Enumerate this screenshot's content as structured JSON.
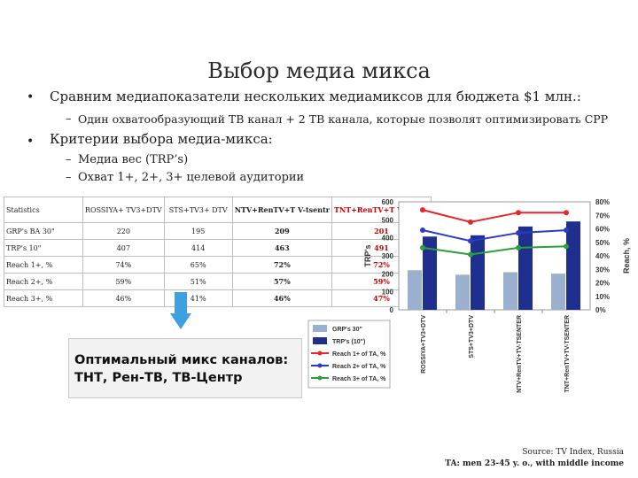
{
  "slide": {
    "title": "Выбор медиа микса",
    "bullet1": "Сравним медиапоказатели нескольких медиамиксов для бюджета $1 млн.:",
    "bullet1_sub": "Один охватообразующий ТВ канал + 2 ТВ канала, которые позволят оптимизировать CPP",
    "bullet2": "Критерии выбора медиа-микса:",
    "bullet2_sub1": "Медиа вес (TRP’s)",
    "bullet2_sub2": "Охват 1+, 2+, 3+ целевой аудитории",
    "bullet_char": "•",
    "dash_char": "–"
  },
  "table": {
    "header": [
      "Statistics",
      "ROSSIYA+ TV3+DTV",
      "STS+TV3+ DTV",
      "NTV+RenTV+T V-tsentr",
      "TNT+RenTV+T V-tsentr"
    ],
    "rows": [
      [
        "GRP's BA 30\"",
        "220",
        "195",
        "209",
        "201"
      ],
      [
        "TRP's 10\"",
        "407",
        "414",
        "463",
        "491"
      ],
      [
        "Reach 1+, %",
        "74%",
        "65%",
        "72%",
        "72%"
      ],
      [
        "Reach 2+, %",
        "59%",
        "51%",
        "57%",
        "59%"
      ],
      [
        "Reach 3+, %",
        "46%",
        "41%",
        "46%",
        "47%"
      ]
    ]
  },
  "conclusion": {
    "line1": "Оптимальный микс каналов:",
    "line2": "ТНТ, Рен-ТВ, ТВ-Центр"
  },
  "source": {
    "line1": "Source: TV Index, Russia",
    "line2": "TA: men 23-45 y. o., with middle income"
  },
  "colors": {
    "grp_bar": "#9bb0cf",
    "trp_bar": "#1f2f8f",
    "reach1": "#e8262b",
    "reach2": "#2b3cc4",
    "reach3": "#2f9e3a",
    "highlight": "#cc0000",
    "arrow": "#3ea0e0"
  },
  "chart_data": {
    "type": "bar",
    "categories": [
      "ROSSIYA+TV3+DTV",
      "STS+TV3+DTV",
      "NTV+RenTV+TV-TSENTER",
      "TNT+RenTV+TV-TSENTER"
    ],
    "series": [
      {
        "name": "GRP's 30\"",
        "kind": "bar",
        "axis": "left",
        "values": [
          220,
          195,
          209,
          201
        ]
      },
      {
        "name": "TRP's (10\")",
        "kind": "bar",
        "axis": "left",
        "values": [
          407,
          414,
          463,
          491
        ]
      },
      {
        "name": "Reach 1+ of TA, %",
        "kind": "line",
        "axis": "right",
        "values": [
          74,
          65,
          72,
          72
        ]
      },
      {
        "name": "Reach 2+ of TA, %",
        "kind": "line",
        "axis": "right",
        "values": [
          59,
          51,
          57,
          59
        ]
      },
      {
        "name": "Reach 3+ of TA, %",
        "kind": "line",
        "axis": "right",
        "values": [
          46,
          41,
          46,
          47
        ]
      }
    ],
    "ylabel": "TRP's",
    "y2label": "Reach, %",
    "ylim": [
      0,
      600
    ],
    "y2lim": [
      0,
      80
    ],
    "yticks": [
      "0",
      "100",
      "200",
      "300",
      "400",
      "500",
      "600"
    ],
    "y2ticks": [
      "0%",
      "10%",
      "20%",
      "30%",
      "40%",
      "50%",
      "60%",
      "70%",
      "80%"
    ],
    "legend_position": "bottom-left"
  }
}
